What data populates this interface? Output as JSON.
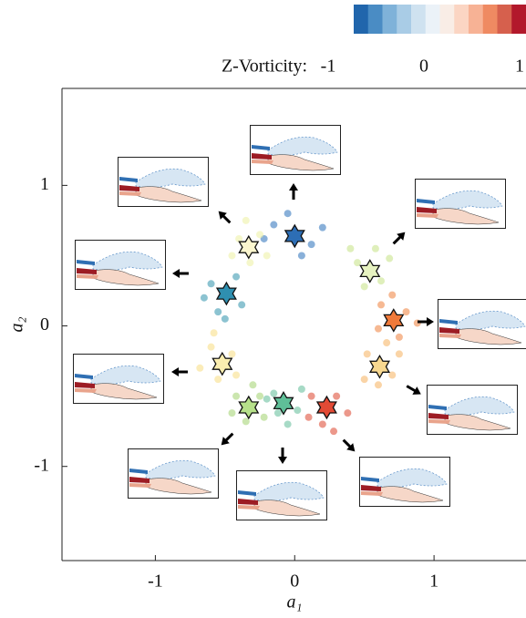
{
  "chart_data": {
    "type": "scatter",
    "xlabel": "a₁",
    "ylabel": "a₂",
    "xlim": [
      -1.67,
      1.66
    ],
    "ylim": [
      -1.67,
      1.69
    ],
    "xticks": [
      -1,
      0,
      1
    ],
    "yticks": [
      -1,
      0,
      1
    ],
    "colorbar": {
      "label": "Z-Vorticity:",
      "lim": [
        -1,
        1
      ],
      "ticks": [
        -1,
        0,
        1
      ],
      "colors": [
        "#2166ac",
        "#4a8cc4",
        "#7fb2d9",
        "#a9cce6",
        "#cfe2f0",
        "#ebf2f8",
        "#f9ede6",
        "#fbd5c3",
        "#f7b295",
        "#ef8a62",
        "#d6604d",
        "#b2182b"
      ]
    },
    "series": [
      {
        "color": "#3a7bbf",
        "x": [
          -0.15,
          0.12,
          -0.05,
          0.2,
          0.05,
          -0.22
        ],
        "y": [
          0.72,
          0.58,
          0.8,
          0.7,
          0.5,
          0.62
        ]
      },
      {
        "color": "#c9e58e",
        "x": [
          0.45,
          0.62,
          0.5,
          0.68,
          0.4,
          0.58
        ],
        "y": [
          0.45,
          0.32,
          0.28,
          0.48,
          0.55,
          0.55
        ]
      },
      {
        "color": "#f08a4b",
        "x": [
          0.62,
          0.8,
          0.75,
          0.88,
          0.6,
          0.7
        ],
        "y": [
          0.15,
          0.1,
          -0.08,
          0.02,
          -0.02,
          0.22
        ]
      },
      {
        "color": "#f6b86a",
        "x": [
          0.52,
          0.7,
          0.6,
          0.75,
          0.5,
          0.66
        ],
        "y": [
          -0.2,
          -0.35,
          -0.42,
          -0.2,
          -0.38,
          -0.12
        ]
      },
      {
        "color": "#e0533e",
        "x": [
          0.12,
          0.3,
          0.2,
          0.38,
          0.28,
          0.1
        ],
        "y": [
          -0.5,
          -0.5,
          -0.7,
          -0.62,
          -0.75,
          -0.65
        ]
      },
      {
        "color": "#6cc2a0",
        "x": [
          -0.15,
          0.02,
          -0.05,
          -0.12,
          0.05,
          -0.2
        ],
        "y": [
          -0.48,
          -0.6,
          -0.7,
          -0.62,
          -0.45,
          -0.52
        ]
      },
      {
        "color": "#a8d67a",
        "x": [
          -0.42,
          -0.25,
          -0.35,
          -0.45,
          -0.22,
          -0.3
        ],
        "y": [
          -0.5,
          -0.5,
          -0.68,
          -0.62,
          -0.65,
          -0.42
        ]
      },
      {
        "color": "#f8e08a",
        "x": [
          -0.6,
          -0.45,
          -0.55,
          -0.68,
          -0.42,
          -0.58
        ],
        "y": [
          -0.15,
          -0.2,
          -0.38,
          -0.3,
          -0.35,
          -0.05
        ]
      },
      {
        "color": "#3f9bb3",
        "x": [
          -0.6,
          -0.42,
          -0.55,
          -0.65,
          -0.38,
          -0.5
        ],
        "y": [
          0.3,
          0.35,
          0.1,
          0.2,
          0.15,
          0.05
        ]
      },
      {
        "color": "#eef1a8",
        "x": [
          -0.4,
          -0.25,
          -0.32,
          -0.45,
          -0.2,
          -0.35
        ],
        "y": [
          0.62,
          0.65,
          0.45,
          0.5,
          0.5,
          0.75
        ]
      }
    ],
    "stars": {
      "x": [
        0.0,
        0.54,
        0.71,
        0.61,
        0.23,
        -0.08,
        -0.33,
        -0.52,
        -0.49,
        -0.33
      ],
      "y": [
        0.64,
        0.39,
        0.04,
        -0.29,
        -0.58,
        -0.55,
        -0.58,
        -0.27,
        0.23,
        0.56
      ],
      "colors": [
        "#2d6eb5",
        "#e6f2c0",
        "#f07a3a",
        "#f8d890",
        "#e24a35",
        "#5fbf98",
        "#b6e08a",
        "#fbeeb0",
        "#2f8fb0",
        "#fbf6cf"
      ]
    }
  }
}
